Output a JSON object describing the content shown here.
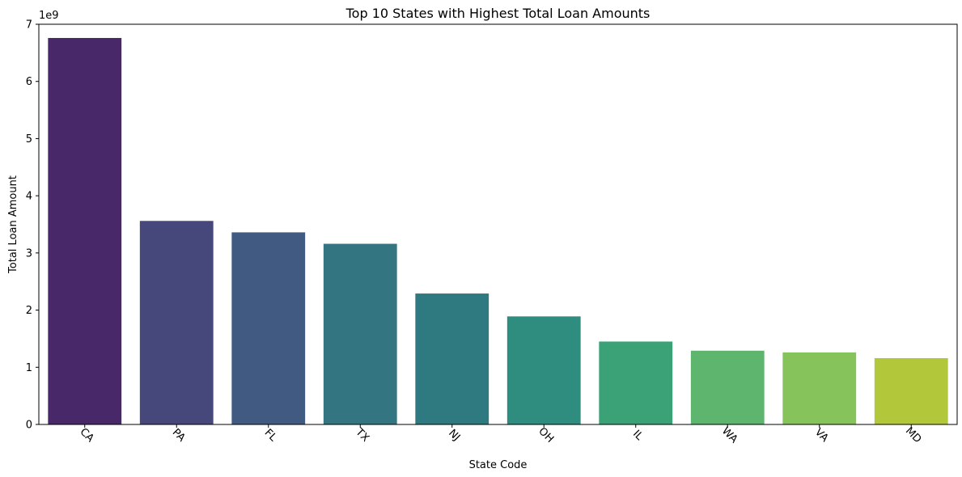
{
  "chart_data": {
    "type": "bar",
    "title": "Top 10 States with Highest Total Loan Amounts",
    "xlabel": "State Code",
    "ylabel": "Total Loan Amount",
    "offset_text": "1e9",
    "categories": [
      "CA",
      "PA",
      "FL",
      "TX",
      "NJ",
      "OH",
      "IL",
      "WA",
      "VA",
      "MD"
    ],
    "values": [
      6760000000,
      3560000000,
      3360000000,
      3160000000,
      2290000000,
      1890000000,
      1450000000,
      1290000000,
      1260000000,
      1160000000
    ],
    "colors": [
      "#482869",
      "#46487b",
      "#405a82",
      "#337682",
      "#2e7a80",
      "#2e8d7f",
      "#3aa276",
      "#5eb56d",
      "#87c35b",
      "#b3c73a"
    ],
    "ylim": [
      0,
      7000000000
    ],
    "yticks": [
      0,
      1,
      2,
      3,
      4,
      5,
      6,
      7
    ],
    "ytick_scale": 1000000000,
    "grid": false,
    "xtick_rotation": 45
  }
}
